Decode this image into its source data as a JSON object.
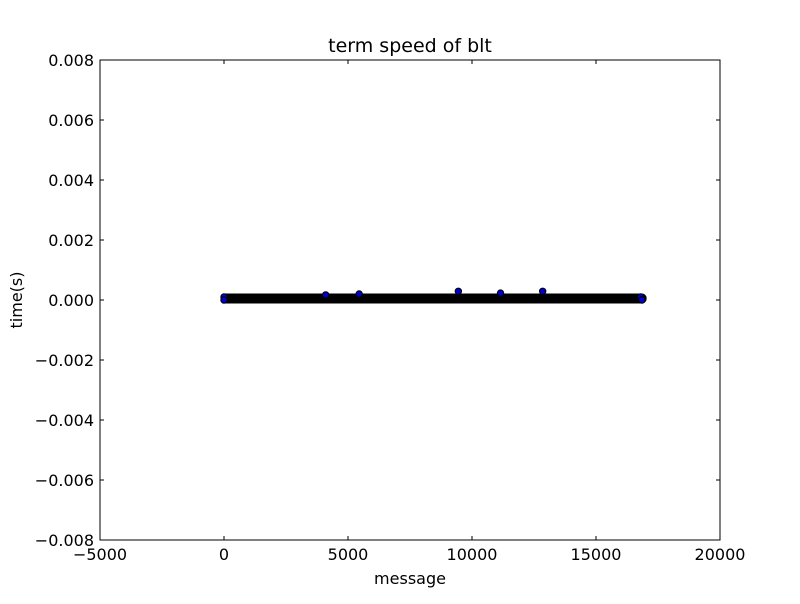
{
  "chart_data": {
    "type": "scatter",
    "title": "term speed of blt",
    "xlabel": "message",
    "ylabel": "time(s)",
    "xlim": [
      -5000,
      20000
    ],
    "ylim": [
      -0.008,
      0.008
    ],
    "xticks": [
      -5000,
      0,
      5000,
      10000,
      15000,
      20000
    ],
    "yticks": [
      -0.008,
      -0.006,
      -0.004,
      -0.002,
      0.0,
      0.002,
      0.004,
      0.006,
      0.008
    ],
    "xtick_labels": [
      "−5000",
      "0",
      "5000",
      "10000",
      "15000",
      "20000"
    ],
    "ytick_labels": [
      "−0.008",
      "−0.006",
      "−0.004",
      "−0.002",
      "0.000",
      "0.002",
      "0.004",
      "0.006",
      "0.008"
    ],
    "grid": false,
    "legend": "none",
    "series": [
      {
        "marker_color": "#0000cc",
        "edge_color": "#000000",
        "band": {
          "x": [
            0,
            16900
          ],
          "y": [
            0.0,
            0.0001
          ]
        },
        "points": [
          {
            "x": 0,
            "y": 0.0001
          },
          {
            "x": 0,
            "y": 0.0
          },
          {
            "x": 4100,
            "y": 0.00017
          },
          {
            "x": 5450,
            "y": 0.0002
          },
          {
            "x": 9450,
            "y": 0.00029
          },
          {
            "x": 11150,
            "y": 0.00023
          },
          {
            "x": 12850,
            "y": 0.00029
          },
          {
            "x": 16800,
            "y": 0.0001
          },
          {
            "x": 16850,
            "y": 0.0
          }
        ]
      }
    ]
  }
}
